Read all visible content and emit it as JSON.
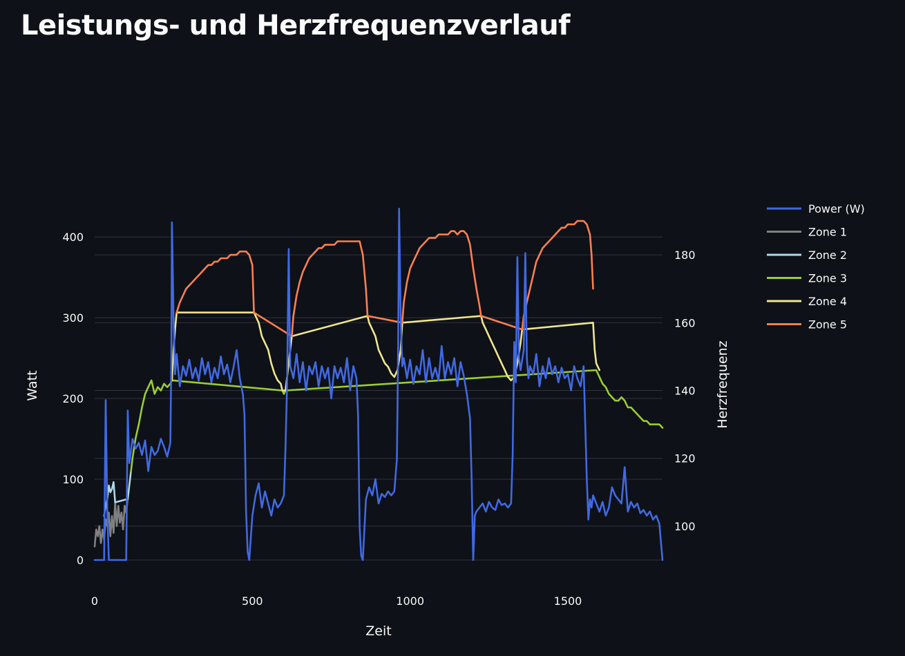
{
  "page": {
    "title": "Leistungs- und Herzfrequenzverlauf"
  },
  "chart_data": {
    "type": "line",
    "title": "Leistungs- und Herzfrequenzverlauf",
    "xlabel": "Zeit",
    "ylabel": "Watt",
    "y2label": "Herzfrequenz",
    "xlim": [
      0,
      1800
    ],
    "ylim": [
      0,
      430
    ],
    "y2lim": [
      90,
      190
    ],
    "xticks": [
      0,
      500,
      1000,
      1500
    ],
    "yticks": [
      0,
      100,
      200,
      300,
      400
    ],
    "y2ticks": [
      100,
      120,
      140,
      160,
      180
    ],
    "grid": true,
    "legend_position": "right",
    "colors": {
      "background": "#0e1117",
      "grid": "#31333f",
      "text": "#fafafa",
      "power": "#4169e1",
      "zone1": "#808080",
      "zone2": "#add8e6",
      "zone3": "#9acd32",
      "zone4": "#f0e68c",
      "zone5": "#ff7f50"
    },
    "series": [
      {
        "name": "Power (W)",
        "axis": "y",
        "color": "#4169e1",
        "x": [
          0,
          20,
          30,
          35,
          40,
          45,
          55,
          60,
          80,
          100,
          105,
          110,
          120,
          130,
          140,
          150,
          160,
          170,
          180,
          190,
          200,
          210,
          220,
          230,
          240,
          243,
          245,
          250,
          255,
          260,
          270,
          280,
          290,
          300,
          310,
          320,
          330,
          340,
          350,
          360,
          370,
          380,
          390,
          400,
          410,
          420,
          430,
          440,
          450,
          460,
          470,
          475,
          480,
          485,
          490,
          500,
          510,
          520,
          530,
          540,
          550,
          560,
          570,
          580,
          590,
          600,
          605,
          610,
          615,
          620,
          630,
          640,
          650,
          660,
          670,
          680,
          690,
          700,
          710,
          720,
          730,
          740,
          750,
          760,
          770,
          780,
          790,
          800,
          810,
          820,
          830,
          835,
          840,
          845,
          850,
          860,
          870,
          880,
          890,
          900,
          910,
          920,
          930,
          940,
          950,
          958,
          962,
          965,
          970,
          975,
          980,
          990,
          1000,
          1010,
          1020,
          1030,
          1040,
          1050,
          1060,
          1070,
          1080,
          1090,
          1100,
          1110,
          1120,
          1130,
          1140,
          1150,
          1160,
          1170,
          1180,
          1190,
          1195,
          1200,
          1205,
          1210,
          1220,
          1230,
          1240,
          1250,
          1260,
          1270,
          1280,
          1290,
          1300,
          1310,
          1320,
          1325,
          1330,
          1335,
          1340,
          1345,
          1350,
          1360,
          1365,
          1370,
          1375,
          1380,
          1390,
          1400,
          1410,
          1420,
          1430,
          1440,
          1450,
          1460,
          1470,
          1480,
          1490,
          1500,
          1510,
          1520,
          1530,
          1540,
          1550,
          1560,
          1565,
          1570,
          1575,
          1580,
          1590,
          1600,
          1610,
          1620,
          1630,
          1640,
          1650,
          1660,
          1670,
          1680,
          1690,
          1700,
          1710,
          1720,
          1730,
          1740,
          1750,
          1760,
          1770,
          1780,
          1790,
          1800
        ],
        "y": [
          0,
          0,
          0,
          198,
          60,
          0,
          0,
          0,
          0,
          0,
          185,
          120,
          150,
          138,
          145,
          130,
          148,
          110,
          140,
          130,
          135,
          150,
          140,
          128,
          145,
          250,
          418,
          300,
          230,
          255,
          215,
          240,
          228,
          248,
          225,
          238,
          222,
          250,
          230,
          245,
          220,
          238,
          225,
          252,
          230,
          242,
          220,
          238,
          260,
          225,
          205,
          180,
          60,
          10,
          0,
          55,
          80,
          95,
          65,
          85,
          70,
          55,
          75,
          65,
          70,
          80,
          140,
          220,
          385,
          240,
          225,
          255,
          220,
          245,
          210,
          240,
          230,
          245,
          215,
          240,
          225,
          238,
          200,
          240,
          225,
          238,
          220,
          250,
          210,
          240,
          225,
          180,
          40,
          5,
          0,
          75,
          90,
          80,
          100,
          70,
          82,
          78,
          85,
          80,
          85,
          125,
          260,
          435,
          300,
          240,
          250,
          225,
          248,
          218,
          240,
          230,
          260,
          220,
          250,
          225,
          238,
          222,
          265,
          225,
          245,
          230,
          250,
          215,
          245,
          228,
          205,
          175,
          100,
          0,
          55,
          60,
          65,
          70,
          60,
          72,
          65,
          62,
          75,
          68,
          70,
          65,
          70,
          130,
          270,
          220,
          375,
          250,
          235,
          260,
          380,
          250,
          225,
          240,
          230,
          255,
          215,
          240,
          225,
          250,
          230,
          240,
          220,
          238,
          225,
          230,
          210,
          240,
          225,
          215,
          240,
          100,
          50,
          75,
          65,
          80,
          70,
          60,
          72,
          55,
          65,
          90,
          80,
          75,
          70,
          115,
          60,
          72,
          65,
          70,
          58,
          62,
          55,
          60,
          50,
          55,
          45,
          0
        ]
      },
      {
        "name": "Zone 1",
        "axis": "y2",
        "color": "#808080",
        "x": [
          0,
          5,
          10,
          15,
          20,
          25,
          30,
          35,
          40,
          45,
          50,
          55,
          60,
          65,
          70,
          75,
          80,
          85,
          90,
          95,
          100,
          105
        ],
        "y": [
          94,
          99,
          97,
          100,
          95,
          99,
          96,
          102,
          100,
          104,
          97,
          103,
          98,
          107,
          100,
          106,
          101,
          104,
          99,
          106,
          104,
          108
        ]
      },
      {
        "name": "Zone 2",
        "axis": "y2",
        "color": "#add8e6",
        "x": [
          30,
          35,
          40,
          45,
          50,
          55,
          60,
          65,
          105,
          110,
          115
        ],
        "y": [
          103,
          106,
          108,
          112,
          110,
          111,
          113,
          107,
          108,
          112,
          116
        ]
      },
      {
        "name": "Zone 3",
        "axis": "y2",
        "color": "#9acd32",
        "x": [
          115,
          120,
          130,
          140,
          150,
          160,
          170,
          180,
          190,
          200,
          210,
          220,
          230,
          240,
          245,
          595,
          600,
          605,
          1590,
          1600,
          1610,
          1620,
          1630,
          1640,
          1650,
          1660,
          1670,
          1680,
          1690,
          1700,
          1710,
          1720,
          1730,
          1740,
          1750,
          1760,
          1770,
          1780,
          1790,
          1800
        ],
        "y": [
          116,
          120,
          126,
          130,
          135,
          139,
          141,
          143,
          139,
          141,
          140,
          142,
          141,
          142,
          143,
          140,
          139,
          140,
          146,
          144,
          142,
          141,
          139,
          138,
          137,
          137,
          138,
          137,
          135,
          135,
          134,
          133,
          132,
          131,
          131,
          130,
          130,
          130,
          130,
          129
        ]
      },
      {
        "name": "Zone 4",
        "axis": "y2",
        "color": "#f0e68c",
        "x": [
          245,
          250,
          255,
          260,
          505,
          510,
          520,
          530,
          540,
          550,
          560,
          570,
          580,
          590,
          595,
          605,
          610,
          615,
          620,
          625,
          865,
          870,
          880,
          890,
          900,
          910,
          920,
          930,
          940,
          950,
          960,
          970,
          975,
          1225,
          1230,
          1240,
          1250,
          1260,
          1270,
          1280,
          1290,
          1300,
          1310,
          1320,
          1330,
          1340,
          1350,
          1355,
          1580,
          1585,
          1590,
          1600
        ],
        "y": [
          143,
          152,
          158,
          163,
          163,
          162,
          160,
          156,
          154,
          152,
          148,
          145,
          143,
          142,
          140,
          140,
          144,
          148,
          152,
          156,
          162,
          160,
          158,
          156,
          152,
          150,
          148,
          147,
          145,
          144,
          146,
          152,
          160,
          162,
          160,
          158,
          156,
          154,
          152,
          150,
          148,
          146,
          144,
          143,
          144,
          148,
          154,
          158,
          160,
          152,
          148,
          146
        ]
      },
      {
        "name": "Zone 5",
        "axis": "y2",
        "color": "#ff7f50",
        "x": [
          260,
          270,
          280,
          290,
          300,
          310,
          320,
          330,
          340,
          350,
          360,
          370,
          380,
          390,
          400,
          410,
          420,
          430,
          440,
          450,
          460,
          470,
          480,
          490,
          500,
          505,
          625,
          630,
          640,
          650,
          660,
          670,
          680,
          690,
          700,
          710,
          720,
          730,
          740,
          750,
          760,
          770,
          780,
          790,
          800,
          810,
          820,
          830,
          840,
          850,
          860,
          865,
          975,
          980,
          990,
          1000,
          1010,
          1020,
          1030,
          1040,
          1050,
          1060,
          1070,
          1080,
          1090,
          1100,
          1110,
          1120,
          1130,
          1140,
          1150,
          1160,
          1170,
          1180,
          1190,
          1200,
          1210,
          1220,
          1225,
          1355,
          1360,
          1370,
          1380,
          1390,
          1400,
          1410,
          1420,
          1430,
          1440,
          1450,
          1460,
          1470,
          1480,
          1490,
          1500,
          1510,
          1520,
          1530,
          1540,
          1550,
          1560,
          1570,
          1575,
          1580
        ],
        "y": [
          163,
          166,
          168,
          170,
          171,
          172,
          173,
          174,
          175,
          176,
          177,
          177,
          178,
          178,
          179,
          179,
          179,
          180,
          180,
          180,
          181,
          181,
          181,
          180,
          177,
          163,
          156,
          162,
          168,
          172,
          175,
          177,
          179,
          180,
          181,
          182,
          182,
          183,
          183,
          183,
          183,
          184,
          184,
          184,
          184,
          184,
          184,
          184,
          184,
          180,
          170,
          162,
          160,
          166,
          172,
          176,
          178,
          180,
          182,
          183,
          184,
          185,
          185,
          185,
          186,
          186,
          186,
          186,
          187,
          187,
          186,
          187,
          187,
          186,
          183,
          176,
          170,
          165,
          162,
          158,
          162,
          166,
          170,
          174,
          178,
          180,
          182,
          183,
          184,
          185,
          186,
          187,
          188,
          188,
          189,
          189,
          189,
          190,
          190,
          190,
          189,
          186,
          180,
          170
        ]
      }
    ]
  }
}
